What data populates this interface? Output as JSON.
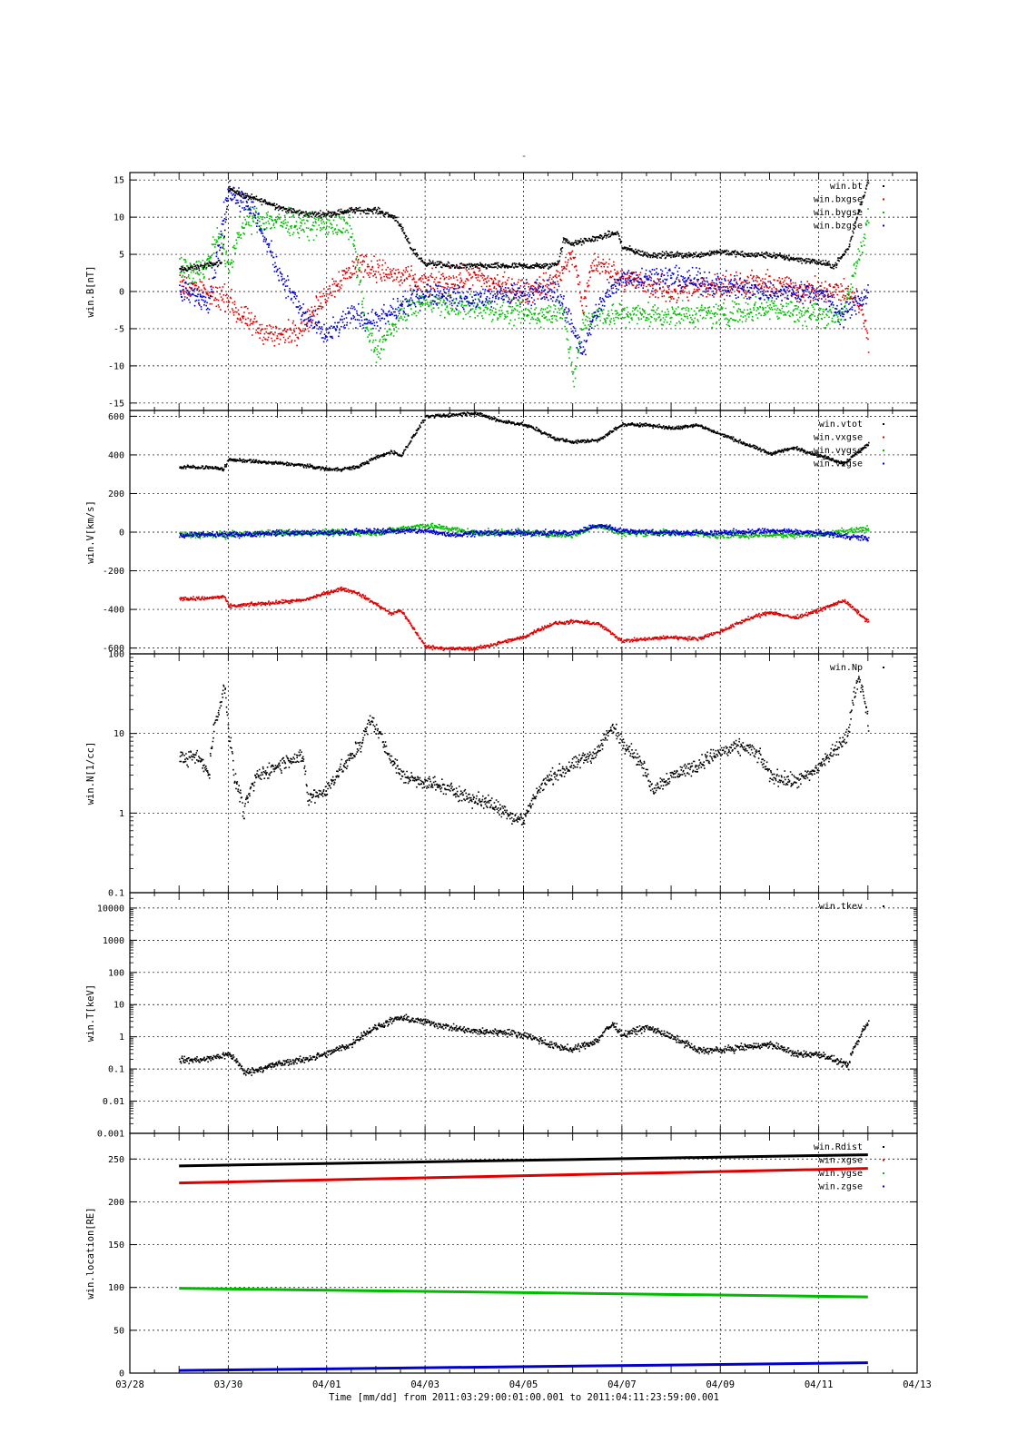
{
  "page": {
    "title": "-",
    "xaxis_label": "Time [mm/dd]  from 2011:03:29:00:01:00.001  to  2011:04:11:23:59:00.001"
  },
  "colors": {
    "black": "#000000",
    "red": "#dd0000",
    "green": "#00bb00",
    "blue": "#0000cc",
    "grid": "#000000"
  },
  "time_axis": {
    "range_days": [
      0,
      16
    ],
    "tick_days": [
      0,
      2,
      4,
      6,
      8,
      10,
      12,
      14,
      16
    ],
    "tick_labels": [
      "03/28",
      "03/30",
      "04/01",
      "04/03",
      "04/05",
      "04/07",
      "04/09",
      "04/11",
      "04/13"
    ],
    "data_start_day": 1.0,
    "data_end_day": 15.0
  },
  "chart_data": [
    {
      "id": "B",
      "type": "scatter",
      "ylabel": "win.B[nT]",
      "yscale": "linear",
      "ylim": [
        -16,
        16
      ],
      "yticks": [
        -15,
        -10,
        -5,
        0,
        5,
        10,
        15
      ],
      "ytick_labels": [
        "-15",
        "-10",
        "-5",
        "0",
        "5",
        "10",
        "15"
      ],
      "grid": true,
      "legend_position": "top-right",
      "series": [
        {
          "name": "win.bt",
          "color": "black",
          "noise": 0.35,
          "x": [
            1.0,
            1.5,
            1.85,
            2.0,
            2.3,
            2.8,
            3.2,
            3.6,
            4.0,
            4.5,
            5.0,
            5.4,
            5.7,
            5.95,
            6.5,
            7.0,
            7.5,
            8.0,
            8.5,
            8.7,
            8.8,
            9.0,
            9.3,
            9.6,
            9.9,
            10.0,
            10.5,
            11.0,
            11.5,
            12.0,
            12.5,
            13.0,
            13.5,
            14.0,
            14.3,
            14.6,
            14.8,
            15.0
          ],
          "y": [
            3,
            3.5,
            4,
            14,
            13,
            12,
            11,
            10.5,
            10.5,
            11,
            11,
            10,
            6,
            4,
            3.5,
            3.5,
            3.5,
            3.5,
            3.5,
            4,
            7,
            6.5,
            7,
            7.5,
            8,
            6,
            5,
            5,
            5,
            5.5,
            5,
            5,
            4.5,
            4,
            3.5,
            6,
            11,
            15
          ]
        },
        {
          "name": "win.bxgse",
          "color": "red",
          "noise": 1.4,
          "x": [
            1.0,
            1.5,
            2.0,
            2.2,
            2.6,
            3.0,
            3.4,
            3.7,
            4.0,
            4.3,
            4.7,
            5.0,
            5.5,
            6.0,
            7.0,
            8.0,
            8.5,
            8.8,
            9.0,
            9.2,
            9.4,
            10.0,
            11.0,
            12.0,
            13.0,
            14.0,
            14.5,
            14.8,
            15.0
          ],
          "y": [
            1,
            0,
            -1,
            -3,
            -5,
            -6,
            -5,
            -3,
            0,
            2,
            4,
            3,
            2,
            1,
            2,
            0,
            1,
            3,
            5,
            -2,
            4,
            2,
            0,
            1,
            1,
            0,
            0,
            -1,
            -6
          ]
        },
        {
          "name": "win.bygse",
          "color": "green",
          "noise": 1.4,
          "x": [
            1.0,
            1.5,
            1.8,
            2.0,
            2.2,
            2.5,
            3.0,
            3.5,
            4.0,
            4.5,
            4.8,
            5.0,
            5.5,
            6.0,
            6.5,
            7.0,
            8.0,
            8.5,
            8.8,
            9.0,
            9.2,
            9.5,
            10.0,
            11.0,
            12.0,
            13.0,
            14.0,
            14.5,
            14.8,
            15.0
          ],
          "y": [
            3,
            3,
            8,
            3,
            8,
            10,
            9.5,
            9,
            9,
            8.5,
            -5,
            -8,
            -3,
            -1,
            -2,
            -2,
            -3,
            -3,
            -2,
            -12,
            -4,
            -3,
            -3,
            -3,
            -3,
            -2,
            -3,
            -3,
            5,
            10
          ]
        },
        {
          "name": "win.bzgse",
          "color": "blue",
          "noise": 1.3,
          "x": [
            1.0,
            1.6,
            2.0,
            2.5,
            3.0,
            3.5,
            4.0,
            4.5,
            5.0,
            5.5,
            6.0,
            7.0,
            8.0,
            8.7,
            9.0,
            9.2,
            9.5,
            10.0,
            11.0,
            12.0,
            13.0,
            14.0,
            14.5,
            15.0
          ],
          "y": [
            0,
            -1,
            14,
            11,
            3,
            -3,
            -6,
            -3,
            -4,
            -2,
            0,
            -1,
            0,
            0,
            -5,
            -8,
            -2,
            2,
            2,
            1,
            0,
            0,
            -3,
            0
          ]
        }
      ]
    },
    {
      "id": "V",
      "type": "scatter",
      "ylabel": "win.V[km/s]",
      "yscale": "linear",
      "ylim": [
        -630,
        630
      ],
      "yticks": [
        -600,
        -400,
        -200,
        0,
        200,
        400,
        600
      ],
      "ytick_labels": [
        "-600",
        "-400",
        "-200",
        "0",
        "200",
        "400",
        "600"
      ],
      "grid": true,
      "legend_position": "top-right",
      "series": [
        {
          "name": "win.vtot",
          "color": "black",
          "noise": 8,
          "x": [
            1.0,
            1.5,
            1.9,
            2.0,
            2.5,
            3.0,
            3.5,
            4.0,
            4.3,
            4.6,
            5.0,
            5.3,
            5.5,
            6.0,
            6.5,
            7.0,
            7.5,
            8.0,
            8.3,
            8.6,
            9.0,
            9.5,
            10.0,
            10.5,
            11.0,
            11.5,
            12.0,
            12.5,
            13.0,
            13.5,
            14.0,
            14.5,
            15.0
          ],
          "y": [
            340,
            340,
            330,
            380,
            370,
            360,
            350,
            330,
            330,
            340,
            390,
            420,
            400,
            600,
            610,
            620,
            580,
            560,
            530,
            490,
            470,
            480,
            560,
            560,
            540,
            560,
            510,
            460,
            410,
            440,
            400,
            360,
            460
          ]
        },
        {
          "name": "win.vxgse",
          "color": "red",
          "noise": 8,
          "x": [
            1.0,
            1.5,
            1.9,
            2.0,
            2.5,
            3.0,
            3.5,
            4.0,
            4.3,
            4.6,
            5.0,
            5.3,
            5.5,
            6.0,
            6.5,
            7.0,
            7.5,
            8.0,
            8.3,
            8.6,
            9.0,
            9.5,
            10.0,
            10.5,
            11.0,
            11.5,
            12.0,
            12.5,
            13.0,
            13.5,
            14.0,
            14.5,
            15.0
          ],
          "y": [
            -340,
            -340,
            -330,
            -380,
            -370,
            -360,
            -350,
            -310,
            -290,
            -310,
            -370,
            -420,
            -400,
            -590,
            -600,
            -600,
            -570,
            -540,
            -500,
            -470,
            -460,
            -470,
            -560,
            -550,
            -540,
            -550,
            -510,
            -450,
            -410,
            -440,
            -400,
            -350,
            -460
          ]
        },
        {
          "name": "win.vygse",
          "color": "green",
          "noise": 14,
          "x": [
            1.0,
            2.0,
            3.0,
            4.0,
            5.0,
            5.5,
            6.0,
            6.5,
            7.0,
            8.0,
            9.0,
            9.5,
            10.0,
            11.0,
            12.0,
            13.0,
            14.0,
            15.0
          ],
          "y": [
            -10,
            -10,
            0,
            0,
            0,
            20,
            40,
            20,
            0,
            0,
            -10,
            40,
            0,
            0,
            -10,
            -10,
            -10,
            20
          ]
        },
        {
          "name": "win.vzgse",
          "color": "blue",
          "noise": 12,
          "x": [
            1.0,
            2.0,
            3.0,
            4.0,
            5.0,
            5.5,
            6.0,
            6.5,
            7.0,
            8.0,
            9.0,
            9.5,
            10.0,
            11.0,
            12.0,
            13.0,
            14.0,
            15.0
          ],
          "y": [
            -10,
            -10,
            0,
            0,
            10,
            10,
            10,
            -10,
            0,
            0,
            0,
            40,
            10,
            0,
            0,
            10,
            0,
            -30
          ]
        }
      ]
    },
    {
      "id": "N",
      "type": "scatter",
      "ylabel": "win.N[1/cc]",
      "yscale": "log",
      "ylim": [
        0.1,
        100
      ],
      "yticks": [
        0.1,
        1,
        10,
        100
      ],
      "ytick_labels": [
        "0.1",
        "1",
        "10",
        "100"
      ],
      "grid": true,
      "legend_position": "top-right",
      "series": [
        {
          "name": "win.Np",
          "color": "black",
          "noise": 0.08,
          "x": [
            1.0,
            1.4,
            1.6,
            1.8,
            1.9,
            2.0,
            2.1,
            2.3,
            2.6,
            3.0,
            3.3,
            3.5,
            3.6,
            4.0,
            4.5,
            4.7,
            4.9,
            5.2,
            5.5,
            6.0,
            6.5,
            7.0,
            7.5,
            7.8,
            8.0,
            8.3,
            8.6,
            9.0,
            9.5,
            9.8,
            10.0,
            10.3,
            10.6,
            11.0,
            11.5,
            12.0,
            12.5,
            12.8,
            13.0,
            13.5,
            13.8,
            14.0,
            14.3,
            14.6,
            14.8,
            15.0
          ],
          "y": [
            5,
            5,
            3,
            20,
            40,
            10,
            3,
            1,
            3,
            4,
            5,
            5,
            1.5,
            2,
            5,
            8,
            15,
            6,
            3,
            2.5,
            2,
            1.5,
            1.2,
            0.9,
            0.8,
            2,
            3,
            4,
            6,
            12,
            8,
            5,
            2,
            3,
            4,
            6,
            7,
            5,
            3,
            2.5,
            3,
            4,
            6,
            10,
            50,
            12
          ]
        }
      ]
    },
    {
      "id": "T",
      "type": "scatter",
      "ylabel": "win.T[keV]",
      "yscale": "log",
      "ylim": [
        0.001,
        30000
      ],
      "yticks": [
        0.001,
        0.01,
        0.1,
        1,
        10,
        100,
        1000,
        10000
      ],
      "ytick_labels": [
        "0.001",
        "0.01",
        "0.1",
        "1",
        "10",
        "100",
        "1000",
        "10000"
      ],
      "grid": true,
      "legend_position": "top-right",
      "series": [
        {
          "name": "win.tkev",
          "color": "black",
          "noise": 0.09,
          "x": [
            1.0,
            1.5,
            2.0,
            2.3,
            2.6,
            3.0,
            3.5,
            4.0,
            4.5,
            5.0,
            5.5,
            6.0,
            6.5,
            7.0,
            7.5,
            8.0,
            8.5,
            9.0,
            9.5,
            9.8,
            10.0,
            10.5,
            11.0,
            11.5,
            12.0,
            12.5,
            13.0,
            13.5,
            14.0,
            14.3,
            14.6,
            14.8,
            15.0
          ],
          "y": [
            0.2,
            0.2,
            0.3,
            0.08,
            0.1,
            0.15,
            0.2,
            0.3,
            0.6,
            2,
            4,
            3,
            2,
            1.5,
            1.5,
            1.2,
            0.6,
            0.4,
            0.8,
            2.5,
            1.2,
            2,
            1,
            0.4,
            0.4,
            0.5,
            0.6,
            0.3,
            0.3,
            0.2,
            0.12,
            0.8,
            3
          ]
        }
      ]
    },
    {
      "id": "loc",
      "type": "line",
      "ylabel": "win.location[RE]",
      "yscale": "linear",
      "ylim": [
        0,
        280
      ],
      "yticks": [
        0,
        50,
        100,
        150,
        200,
        250
      ],
      "ytick_labels": [
        "0",
        "50",
        "100",
        "150",
        "200",
        "250"
      ],
      "grid": true,
      "legend_position": "top-right",
      "series": [
        {
          "name": "win.Rdist",
          "color": "black",
          "x": [
            1.0,
            15.0
          ],
          "y": [
            242,
            255
          ]
        },
        {
          "name": "win.xgse",
          "color": "red",
          "x": [
            1.0,
            15.0
          ],
          "y": [
            222,
            239
          ]
        },
        {
          "name": "win.ygse",
          "color": "green",
          "x": [
            1.0,
            15.0
          ],
          "y": [
            99,
            89
          ]
        },
        {
          "name": "win.zgse",
          "color": "blue",
          "x": [
            1.0,
            15.0
          ],
          "y": [
            3,
            12
          ]
        }
      ]
    }
  ]
}
